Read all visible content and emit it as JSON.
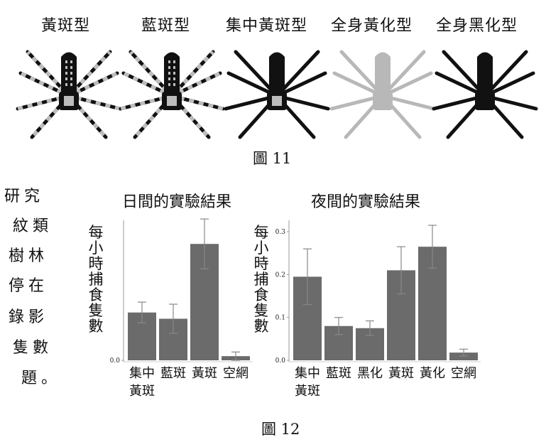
{
  "figure11": {
    "caption": "圖 11",
    "types": [
      {
        "label": "黃斑型",
        "body": "#111111",
        "spots": "#bdbdbd",
        "legs": "striped",
        "abdomen_pattern": true
      },
      {
        "label": "藍斑型",
        "body": "#111111",
        "spots": "#bdbdbd",
        "legs": "striped",
        "abdomen_pattern": true
      },
      {
        "label": "集中黃斑型",
        "body": "#111111",
        "spots": "#bdbdbd",
        "legs": "solid",
        "abdomen_pattern": false
      },
      {
        "label": "全身黃化型",
        "body": "#b8b8b8",
        "spots": "#b8b8b8",
        "legs": "solid",
        "abdomen_pattern": false
      },
      {
        "label": "全身黑化型",
        "body": "#111111",
        "spots": "#111111",
        "legs": "solid",
        "abdomen_pattern": false
      }
    ]
  },
  "side_text": [
    "研究",
    "紋類",
    "樹林",
    "停在",
    "錄影",
    "隻數",
    "題。"
  ],
  "figure12": {
    "caption": "圖 12",
    "ylabel": "每小時捕食隻數",
    "bar_color": "#6b6b6b",
    "charts": [
      {
        "title": "日間的實驗結果",
        "categories": [
          "集中\n黃斑",
          "藍斑",
          "黃斑",
          "空網"
        ],
        "values": [
          0.115,
          0.1,
          0.28,
          0.01
        ],
        "errors": [
          0.025,
          0.035,
          0.06,
          0.01
        ],
        "ylim": [
          0,
          0.33
        ],
        "ticks": [
          0.0
        ]
      },
      {
        "title": "夜間的實驗結果",
        "categories": [
          "集中\n黃斑",
          "藍斑",
          "黑化",
          "黃斑",
          "黃化",
          "空網"
        ],
        "values": [
          0.195,
          0.08,
          0.075,
          0.21,
          0.265,
          0.018
        ],
        "errors": [
          0.065,
          0.02,
          0.017,
          0.055,
          0.05,
          0.008
        ],
        "ylim": [
          0,
          0.32
        ],
        "ticks": [
          0.0,
          0.1,
          0.2,
          0.3
        ]
      }
    ]
  },
  "chart_data": [
    {
      "type": "bar",
      "title": "日間的實驗結果",
      "ylabel": "每小時捕食隻數",
      "categories": [
        "集中黃斑",
        "藍斑",
        "黃斑",
        "空網"
      ],
      "values": [
        0.115,
        0.1,
        0.28,
        0.01
      ],
      "errors": [
        0.025,
        0.035,
        0.06,
        0.01
      ],
      "ylim": [
        0,
        0.33
      ]
    },
    {
      "type": "bar",
      "title": "夜間的實驗結果",
      "ylabel": "每小時捕食隻數",
      "categories": [
        "集中黃斑",
        "藍斑",
        "黑化",
        "黃斑",
        "黃化",
        "空網"
      ],
      "values": [
        0.195,
        0.08,
        0.075,
        0.21,
        0.265,
        0.018
      ],
      "errors": [
        0.065,
        0.02,
        0.017,
        0.055,
        0.05,
        0.008
      ],
      "ylim": [
        0,
        0.32
      ]
    }
  ]
}
